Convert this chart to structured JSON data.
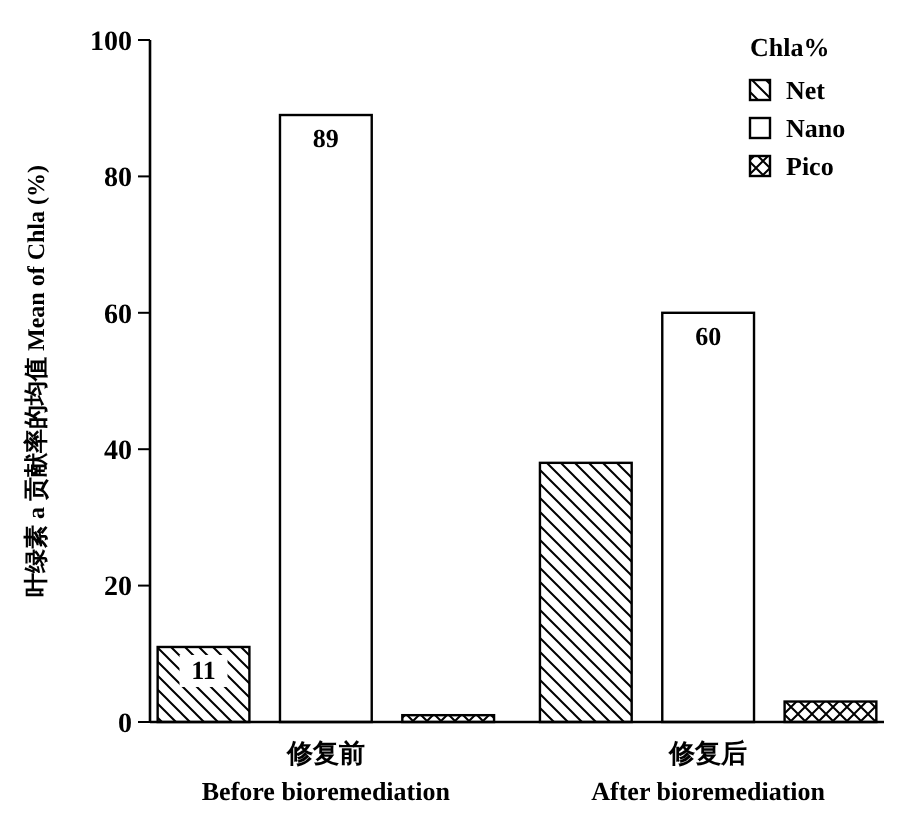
{
  "chart_data": {
    "type": "bar",
    "ylabel": "叶绿素 a 贡献率的均值 Mean of Chla (%)",
    "legend_title": "Chla%",
    "categories": [
      "修复前\nBefore bioremediation",
      "修复后\nAfter bioremediation"
    ],
    "series": [
      {
        "name": "Net",
        "color": "#000000",
        "values": [
          11,
          38
        ],
        "value_labels": [
          "11",
          null
        ]
      },
      {
        "name": "Nano",
        "color": "#000000",
        "values": [
          89,
          60
        ],
        "value_labels": [
          "89",
          "60"
        ]
      },
      {
        "name": "Pico",
        "color": "#000000",
        "values": [
          1,
          3
        ],
        "value_labels": [
          null,
          null
        ]
      }
    ],
    "ylim": [
      0,
      100
    ],
    "yticks": [
      0,
      20,
      40,
      60,
      80,
      100
    ],
    "grid": false,
    "legend": "top right"
  }
}
